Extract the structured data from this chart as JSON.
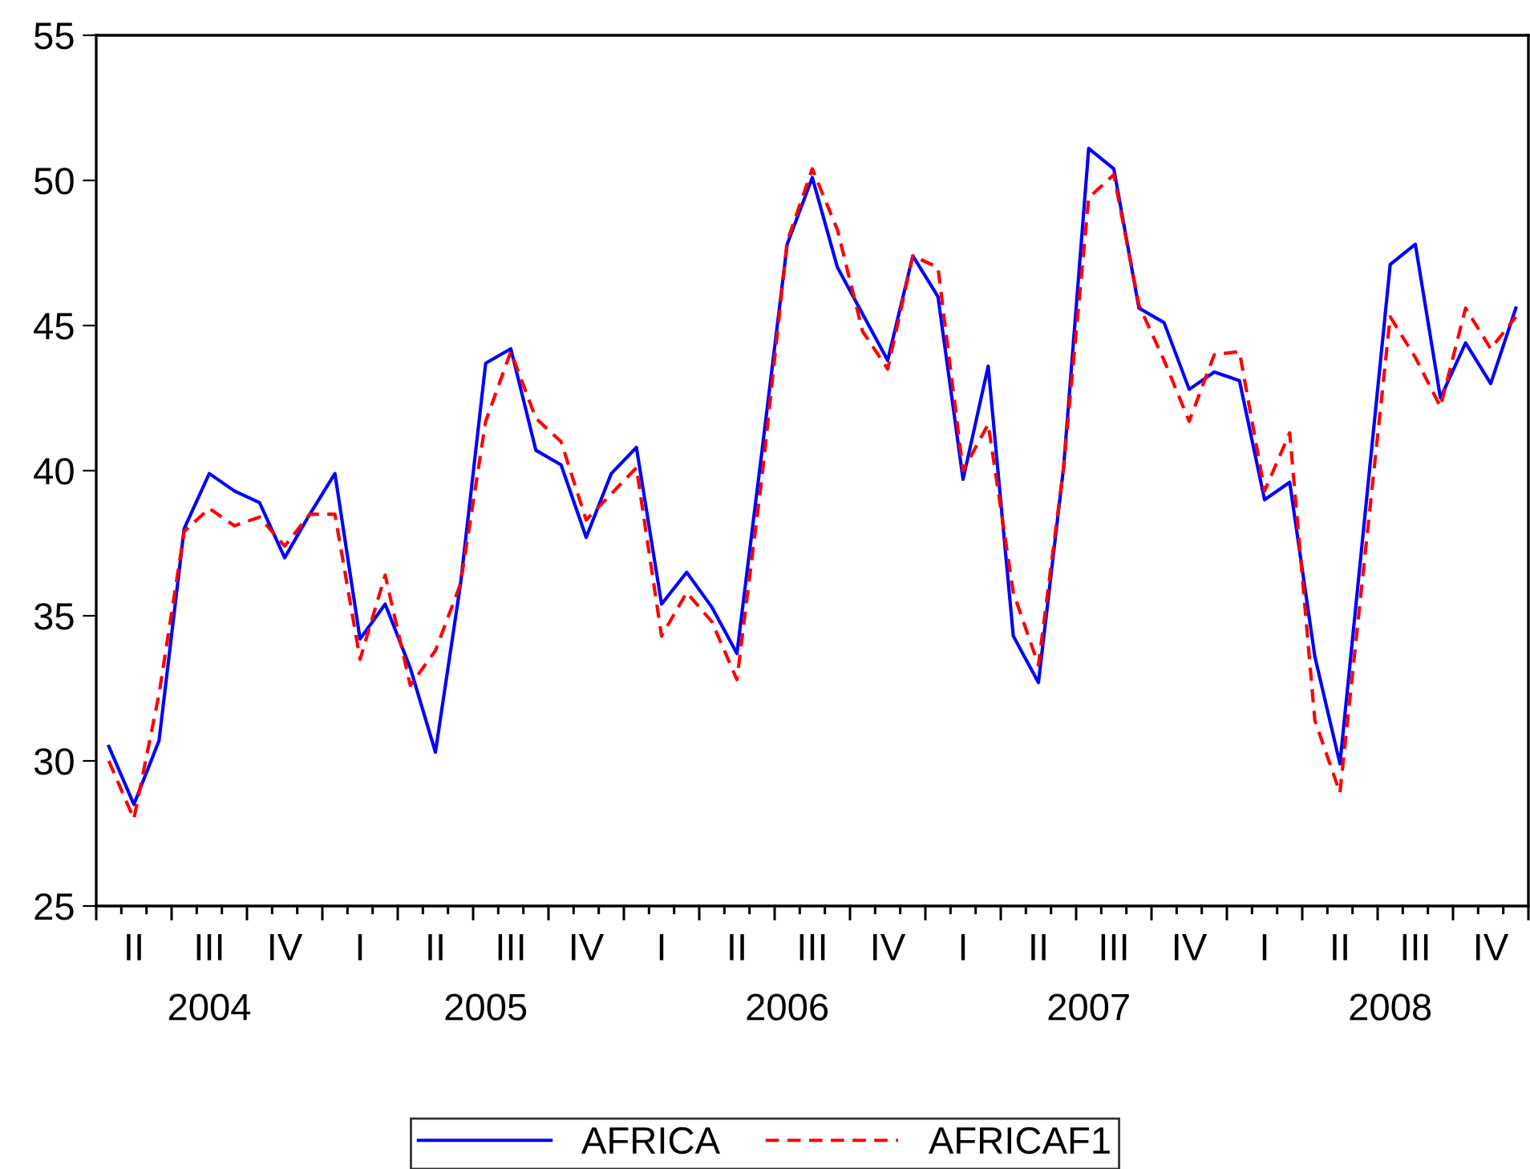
{
  "chart_data": {
    "type": "line",
    "categories": [
      null,
      "II",
      null,
      null,
      "III\n2004",
      null,
      null,
      "IV",
      null,
      null,
      "I",
      null,
      null,
      "II",
      null,
      "\n2005",
      "III",
      null,
      null,
      "IV",
      null,
      null,
      "I",
      null,
      null,
      "II",
      null,
      "\n2006",
      "III",
      null,
      null,
      "IV",
      null,
      null,
      "I",
      null,
      null,
      "II",
      null,
      "\n2007",
      "III",
      null,
      null,
      "IV",
      null,
      null,
      "I",
      null,
      null,
      "II",
      null,
      "\n2008",
      "III",
      null,
      null,
      "IV",
      null
    ],
    "series": [
      {
        "name": "AFRICA",
        "color": "#0000ff",
        "line_style": "solid",
        "values": [
          30.5,
          28.5,
          30.7,
          38.0,
          39.9,
          39.3,
          38.9,
          37.0,
          38.5,
          39.9,
          34.2,
          35.4,
          33.2,
          30.3,
          36.1,
          43.7,
          44.2,
          40.7,
          40.2,
          37.7,
          39.9,
          40.8,
          35.4,
          36.5,
          35.3,
          33.7,
          40.7,
          47.8,
          50.1,
          47.0,
          45.4,
          43.8,
          47.4,
          46.0,
          39.7,
          43.6,
          34.3,
          32.7,
          40.1,
          51.1,
          50.4,
          45.6,
          45.1,
          42.8,
          43.4,
          43.1,
          39.0,
          39.6,
          33.6,
          29.9,
          38.5,
          47.1,
          47.8,
          42.5,
          44.4,
          43.0,
          45.6
        ]
      },
      {
        "name": "AFRICAF1",
        "color": "#ff0000",
        "line_style": "dashed",
        "values": [
          30.0,
          28.0,
          32.3,
          37.9,
          38.7,
          38.1,
          38.4,
          37.4,
          38.5,
          38.5,
          33.5,
          36.4,
          32.6,
          33.8,
          36.1,
          41.7,
          44.1,
          41.8,
          41.0,
          38.3,
          39.2,
          40.1,
          34.3,
          35.8,
          34.8,
          32.8,
          39.8,
          47.9,
          50.4,
          48.3,
          44.8,
          43.5,
          47.4,
          47.0,
          40.0,
          41.6,
          35.8,
          33.3,
          40.1,
          49.4,
          50.2,
          45.7,
          43.8,
          41.7,
          44.0,
          44.1,
          39.3,
          41.3,
          31.4,
          28.9,
          37.1,
          45.3,
          43.9,
          42.2,
          45.6,
          44.2,
          45.3
        ]
      }
    ],
    "ylim": [
      25,
      55
    ],
    "yticks": [
      25,
      30,
      35,
      40,
      45,
      50,
      55
    ],
    "grid": false,
    "legend": "bottom",
    "marker": "none"
  }
}
